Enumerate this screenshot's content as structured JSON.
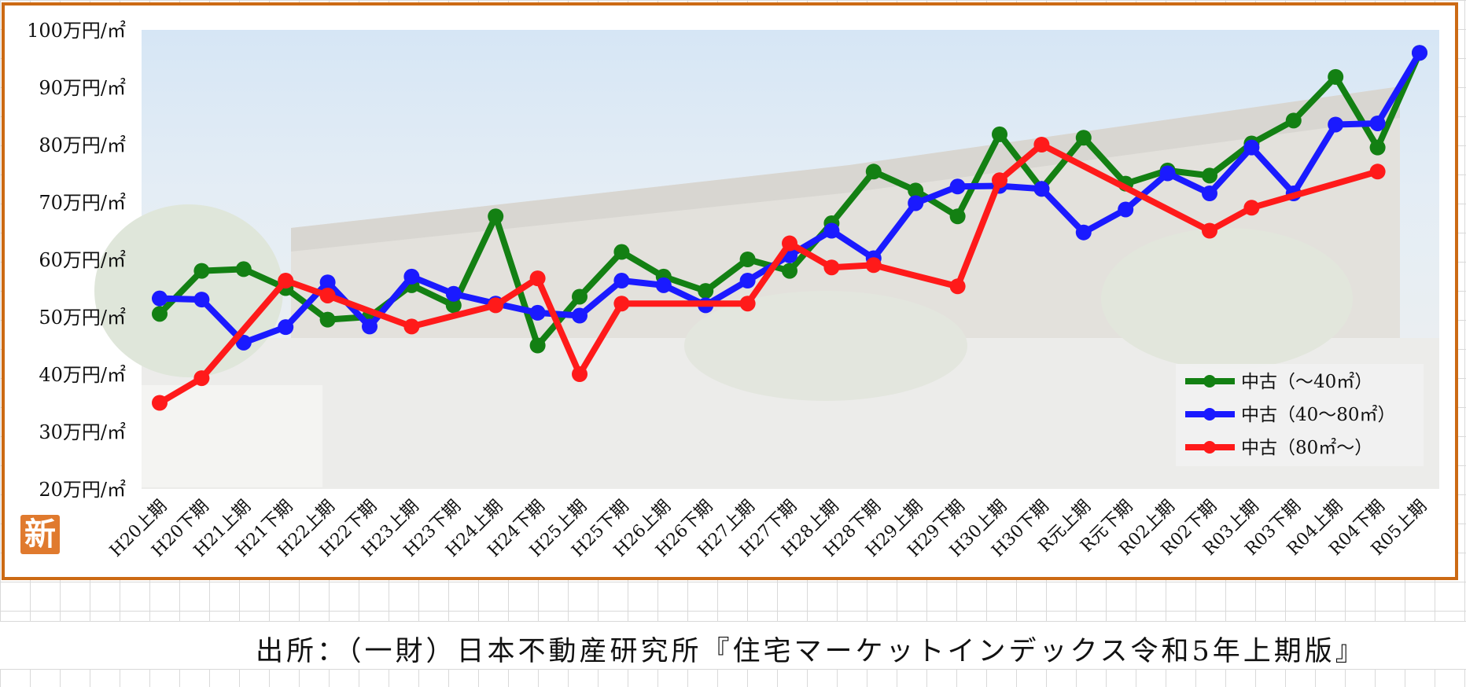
{
  "badge": "新",
  "source": "出所：（一財）日本不動産研究所『住宅マーケットインデックス令和5年上期版』",
  "chart_data": {
    "type": "line",
    "title": "",
    "xlabel": "",
    "ylabel": "",
    "ylim": [
      20,
      100
    ],
    "y_ticks": [
      {
        "value": 100,
        "label": "100万円/㎡"
      },
      {
        "value": 90,
        "label": "90万円/㎡"
      },
      {
        "value": 80,
        "label": "80万円/㎡"
      },
      {
        "value": 70,
        "label": "70万円/㎡"
      },
      {
        "value": 60,
        "label": "60万円/㎡"
      },
      {
        "value": 50,
        "label": "50万円/㎡"
      },
      {
        "value": 40,
        "label": "40万円/㎡"
      },
      {
        "value": 30,
        "label": "30万円/㎡"
      },
      {
        "value": 20,
        "label": "20万円/㎡"
      }
    ],
    "legend_position": "bottom-right",
    "grid": false,
    "categories": [
      "H20上期",
      "H20下期",
      "H21上期",
      "H21下期",
      "H22上期",
      "H22下期",
      "H23上期",
      "H23下期",
      "H24上期",
      "H24下期",
      "H25上期",
      "H25下期",
      "H26上期",
      "H26下期",
      "H27上期",
      "H27下期",
      "H28上期",
      "H28下期",
      "H29上期",
      "H29下期",
      "H30上期",
      "H30下期",
      "R元上期",
      "R元下期",
      "R02上期",
      "R02下期",
      "R03上期",
      "R03下期",
      "R04上期",
      "R04下期",
      "R05上期"
    ],
    "series": [
      {
        "name": "中古（～40㎡）",
        "color": "#138013",
        "values": [
          50.5,
          58,
          58.3,
          55,
          49.5,
          50,
          55.5,
          52,
          67.5,
          45,
          53.5,
          61.3,
          57,
          54.5,
          60,
          58,
          66.3,
          75.3,
          72,
          67.5,
          81.8,
          72.3,
          81.2,
          73.2,
          75.5,
          74.6,
          80.2,
          84.2,
          91.8,
          79.5,
          96
        ]
      },
      {
        "name": "中古（40～80㎡）",
        "color": "#1a1aff",
        "values": [
          53.2,
          53,
          45.5,
          48.2,
          56,
          48.3,
          57,
          54,
          52.3,
          50.7,
          50.2,
          56.3,
          55.5,
          52,
          56.3,
          60.7,
          65,
          60.2,
          69.8,
          72.7,
          72.8,
          72.3,
          64.7,
          68.7,
          75,
          71.5,
          79.5,
          71.5,
          83.5,
          83.7,
          96
        ]
      },
      {
        "name": "中古（80㎡～）",
        "color": "#ff1a1a",
        "values": [
          35,
          39.3,
          null,
          56.3,
          53.7,
          null,
          48.3,
          null,
          52,
          56.7,
          40,
          52.3,
          null,
          null,
          52.3,
          62.8,
          58.6,
          59,
          null,
          55.3,
          73.8,
          80,
          null,
          null,
          null,
          65,
          69,
          null,
          null,
          75.3,
          null
        ]
      }
    ]
  }
}
